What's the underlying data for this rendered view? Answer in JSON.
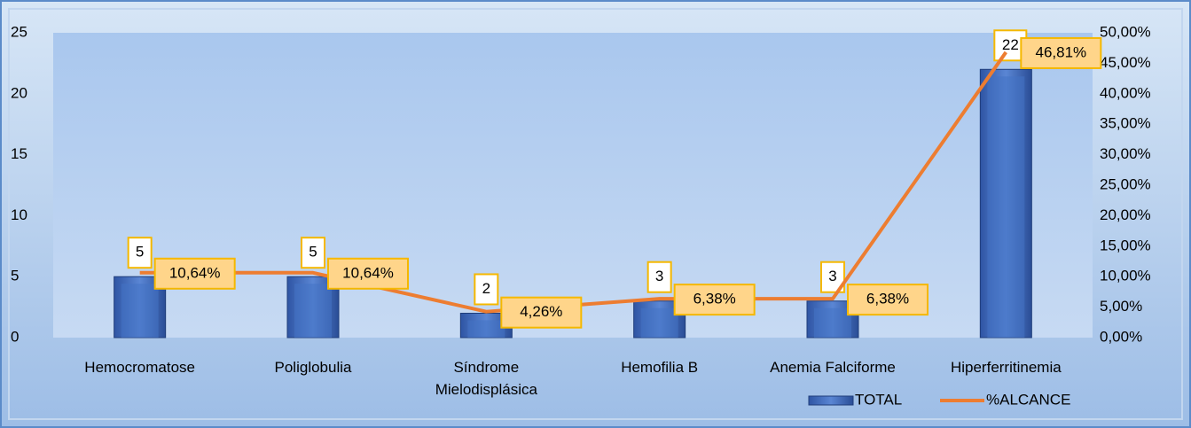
{
  "chart_data": {
    "type": "bar",
    "categories": [
      "Hemocromatose",
      "Poliglobulia",
      "Síndrome Mielodisplásica",
      "Hemofilia B",
      "Anemia Falciforme",
      "Hiperferritinemia"
    ],
    "series": [
      {
        "name": "TOTAL",
        "type": "bar",
        "color": "#4472c4",
        "values": [
          5,
          5,
          2,
          3,
          3,
          22
        ]
      },
      {
        "name": "%ALCANCE",
        "type": "line",
        "axis": "y2",
        "color": "#ed7d31",
        "values": [
          10.64,
          10.64,
          4.26,
          6.38,
          6.38,
          46.81
        ],
        "value_labels": [
          "10,64%",
          "10,64%",
          "4,26%",
          "6,38%",
          "6,38%",
          "46,81%"
        ]
      }
    ],
    "ylim": [
      0,
      25
    ],
    "yticks": [
      0,
      5,
      10,
      15,
      20,
      25
    ],
    "y2lim": [
      0,
      50
    ],
    "y2ticks": [
      {
        "value": 0,
        "label": "0,00%"
      },
      {
        "value": 5,
        "label": "5,00%"
      },
      {
        "value": 10,
        "label": "10,00%"
      },
      {
        "value": 15,
        "label": "15,00%"
      },
      {
        "value": 20,
        "label": "20,00%"
      },
      {
        "value": 25,
        "label": "25,00%"
      },
      {
        "value": 30,
        "label": "30,00%"
      },
      {
        "value": 35,
        "label": "35,00%"
      },
      {
        "value": 40,
        "label": "40,00%"
      },
      {
        "value": 45,
        "label": "45,00%"
      },
      {
        "value": 50,
        "label": "50,00%"
      }
    ],
    "grid": false,
    "legend": "bottom-right"
  }
}
